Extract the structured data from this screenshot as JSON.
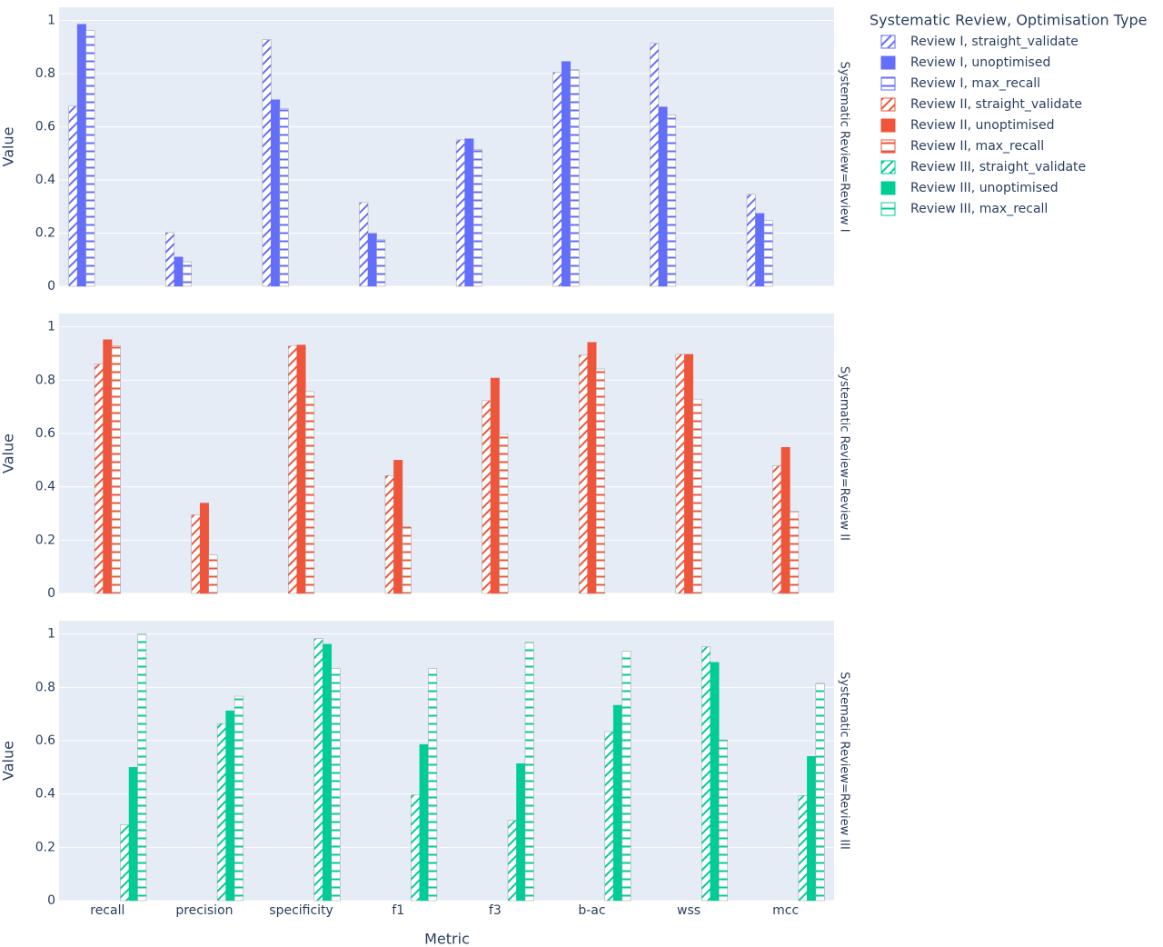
{
  "chart_data": {
    "type": "bar",
    "x_label": "Metric",
    "y_label": "Value",
    "legend_title": "Systematic Review, Optimisation Type",
    "categories": [
      "recall",
      "precision",
      "specificity",
      "f1",
      "f3",
      "b-ac",
      "wss",
      "mcc"
    ],
    "ylim": [
      0,
      1.05
    ],
    "yticks": [
      0,
      0.2,
      0.4,
      0.6,
      0.8,
      1
    ],
    "grid": true,
    "facets": [
      {
        "label": "Systematic Review=Review I",
        "series": [
          {
            "name": "Review I, straight_validate",
            "color": "#636efa",
            "pattern": "/",
            "values": [
              0.678,
              0.202,
              0.928,
              0.315,
              0.551,
              0.805,
              0.914,
              0.346
            ]
          },
          {
            "name": "Review I, unoptimised",
            "color": "#636efa",
            "pattern": "",
            "values": [
              0.986,
              0.11,
              0.702,
              0.199,
              0.555,
              0.846,
              0.675,
              0.274
            ]
          },
          {
            "name": "Review I, max_recall",
            "color": "#636efa",
            "pattern": "-",
            "values": [
              0.962,
              0.092,
              0.668,
              0.175,
              0.514,
              0.815,
              0.644,
              0.247
            ]
          }
        ]
      },
      {
        "label": "Systematic Review=Review II",
        "series": [
          {
            "name": "Review II, straight_validate",
            "color": "#ef553b",
            "pattern": "/",
            "values": [
              0.86,
              0.295,
              0.928,
              0.442,
              0.723,
              0.894,
              0.897,
              0.479
            ]
          },
          {
            "name": "Review II, unoptimised",
            "color": "#ef553b",
            "pattern": "",
            "values": [
              0.952,
              0.339,
              0.932,
              0.5,
              0.808,
              0.942,
              0.897,
              0.548
            ]
          },
          {
            "name": "Review II, max_recall",
            "color": "#ef553b",
            "pattern": "-",
            "values": [
              0.928,
              0.144,
              0.757,
              0.25,
              0.599,
              0.842,
              0.729,
              0.308
            ]
          }
        ]
      },
      {
        "label": "Systematic Review=Review III",
        "series": [
          {
            "name": "Review III, straight_validate",
            "color": "#00cc96",
            "pattern": "/",
            "values": [
              0.284,
              0.664,
              0.983,
              0.397,
              0.301,
              0.634,
              0.952,
              0.394
            ]
          },
          {
            "name": "Review III, unoptimised",
            "color": "#00cc96",
            "pattern": "",
            "values": [
              0.5,
              0.712,
              0.962,
              0.586,
              0.514,
              0.733,
              0.894,
              0.541
            ]
          },
          {
            "name": "Review III, max_recall",
            "color": "#00cc96",
            "pattern": "-",
            "values": [
              1.0,
              0.767,
              0.87,
              0.87,
              0.969,
              0.935,
              0.603,
              0.815
            ]
          }
        ]
      }
    ]
  }
}
